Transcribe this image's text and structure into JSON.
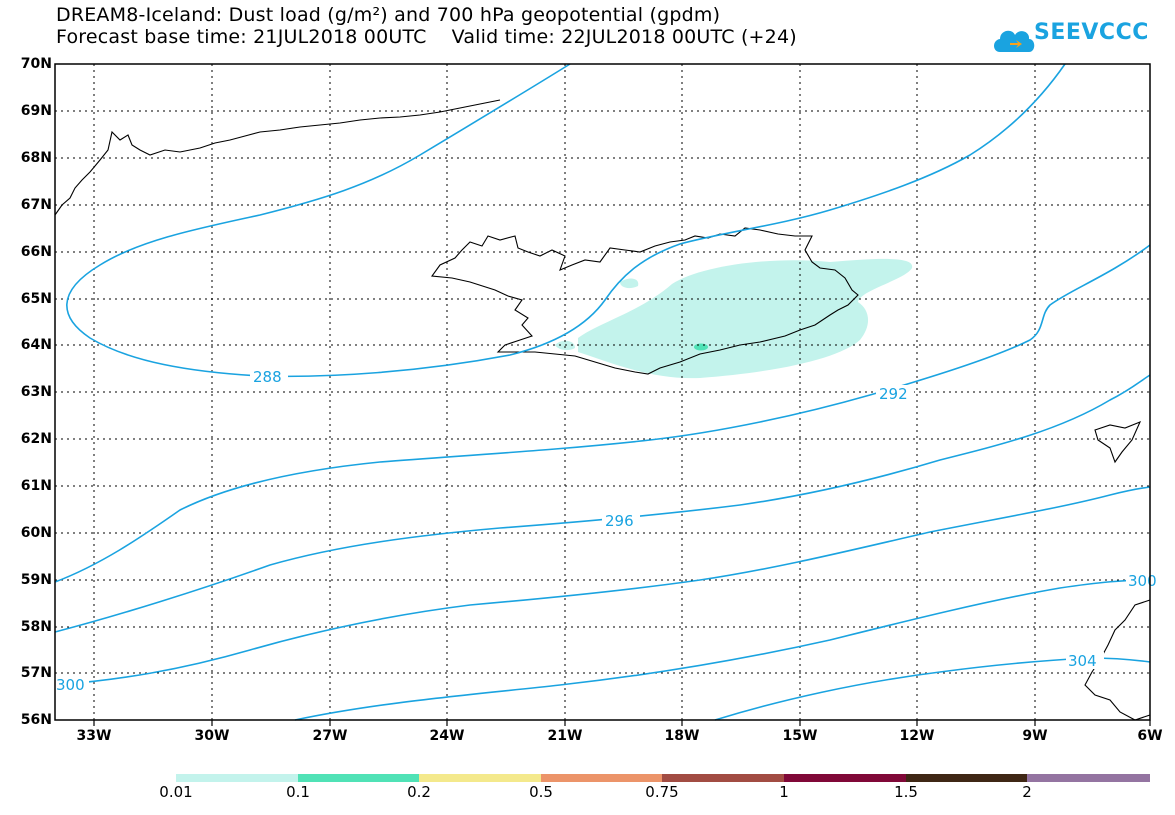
{
  "header": {
    "title_line1": "DREAM8-Iceland: Dust load (g/m²) and 700 hPa geopotential (gpdm)",
    "title_line2": "Forecast base time: 21JUL2018 00UTC    Valid time: 22JUL2018 00UTC (+24)",
    "logo_text": "SEEVCCC"
  },
  "map": {
    "lat_labels": [
      "70N",
      "69N",
      "68N",
      "67N",
      "66N",
      "65N",
      "64N",
      "63N",
      "62N",
      "61N",
      "60N",
      "59N",
      "58N",
      "57N",
      "56N"
    ],
    "lon_labels": [
      "33W",
      "30W",
      "27W",
      "24W",
      "21W",
      "18W",
      "15W",
      "12W",
      "9W",
      "6W"
    ],
    "contour_labels": [
      "288",
      "292",
      "296",
      "300",
      "300",
      "304"
    ],
    "contour_color": "#1aa3e0",
    "dust_color": "#c3f3ec",
    "dust_color_2": "#50e2b6"
  },
  "colorbar": {
    "colors": [
      "#c3f3ec",
      "#50e2b6",
      "#f4e98c",
      "#ec9469",
      "#a24c43",
      "#800838",
      "#3f2715",
      "#9474a1"
    ],
    "labels": [
      "0.01",
      "0.1",
      "0.2",
      "0.5",
      "0.75",
      "1",
      "1.5",
      "2"
    ]
  }
}
